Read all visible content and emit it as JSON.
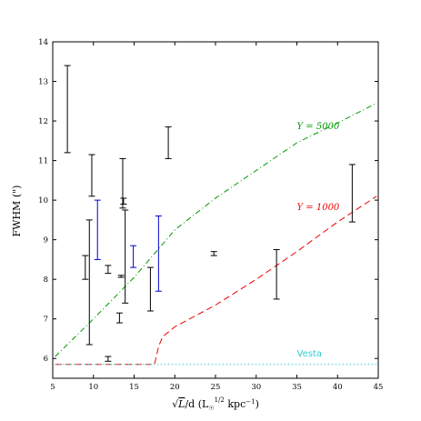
{
  "chart_data": {
    "type": "errorbar",
    "xlabel": "√L/d (L☉^1/2 kpc⁻¹)",
    "xlabel_parts": {
      "sqrt": "√",
      "L": "L",
      "rest": "/d (L",
      "sun": "☉",
      "sup": "1/2",
      "unit": " kpc",
      "exp": "−1",
      "close": ")"
    },
    "ylabel": "FWHM (\")",
    "xlim": [
      5,
      45
    ],
    "ylim": [
      5.5,
      14
    ],
    "xticks": [
      5,
      10,
      15,
      20,
      25,
      30,
      35,
      40,
      45
    ],
    "yticks": [
      6,
      7,
      8,
      9,
      10,
      11,
      12,
      13,
      14
    ],
    "grid": false,
    "series": [
      {
        "color": "#000000",
        "errorbars": [
          {
            "x": 6.8,
            "low": 11.2,
            "high": 13.4
          },
          {
            "x": 9.0,
            "low": 8.0,
            "high": 8.6
          },
          {
            "x": 9.5,
            "low": 6.35,
            "high": 9.5
          },
          {
            "x": 9.8,
            "low": 10.1,
            "high": 11.15
          },
          {
            "x": 11.8,
            "low": 5.93,
            "high": 6.05
          },
          {
            "x": 11.8,
            "low": 8.15,
            "high": 8.35
          },
          {
            "x": 13.2,
            "low": 6.9,
            "high": 7.15
          },
          {
            "x": 13.4,
            "low": 8.05,
            "high": 8.1
          },
          {
            "x": 13.6,
            "low": 9.8,
            "high": 11.05
          },
          {
            "x": 13.7,
            "low": 9.9,
            "high": 10.05
          },
          {
            "x": 13.9,
            "low": 7.4,
            "high": 9.75
          },
          {
            "x": 17.0,
            "low": 7.2,
            "high": 8.3
          },
          {
            "x": 19.2,
            "low": 11.05,
            "high": 11.85
          },
          {
            "x": 24.8,
            "low": 8.6,
            "high": 8.7
          },
          {
            "x": 32.5,
            "low": 7.5,
            "high": 8.75
          },
          {
            "x": 41.8,
            "low": 9.45,
            "high": 10.9
          }
        ]
      },
      {
        "color": "#0000cc",
        "errorbars": [
          {
            "x": 10.5,
            "low": 8.5,
            "high": 10.0
          },
          {
            "x": 14.9,
            "low": 8.3,
            "high": 8.85
          },
          {
            "x": 18.0,
            "low": 7.7,
            "high": 9.6
          }
        ]
      }
    ],
    "curves": [
      {
        "label": "Y = 5000",
        "color": "#009900",
        "style": "dashdot",
        "x": [
          5.3,
          10,
          15,
          20,
          25,
          30,
          35,
          40,
          44.8
        ],
        "y": [
          6.05,
          7.0,
          8.05,
          9.25,
          10.05,
          10.75,
          11.45,
          11.95,
          12.45
        ]
      },
      {
        "label": "Y = 1000",
        "color": "#ee0000",
        "style": "dashed",
        "x": [
          5.3,
          12,
          17.5,
          18.0,
          18.5,
          20,
          25,
          30,
          35,
          40,
          44.8
        ],
        "y": [
          5.85,
          5.85,
          5.85,
          6.3,
          6.55,
          6.8,
          7.35,
          8.0,
          8.7,
          9.45,
          10.1
        ]
      },
      {
        "label": "Vesta",
        "color": "#33cccc",
        "style": "dotted",
        "x": [
          5.3,
          44.8
        ],
        "y": [
          5.85,
          5.85
        ]
      }
    ],
    "annotations": [
      {
        "text": "Y = 5000",
        "x": 35.0,
        "y": 11.8,
        "color": "#009900"
      },
      {
        "text": "Y = 1000",
        "x": 35.0,
        "y": 9.75,
        "color": "#ee0000"
      },
      {
        "text": "Vesta",
        "x": 35.0,
        "y": 6.05,
        "color": "#33cccc"
      }
    ]
  }
}
